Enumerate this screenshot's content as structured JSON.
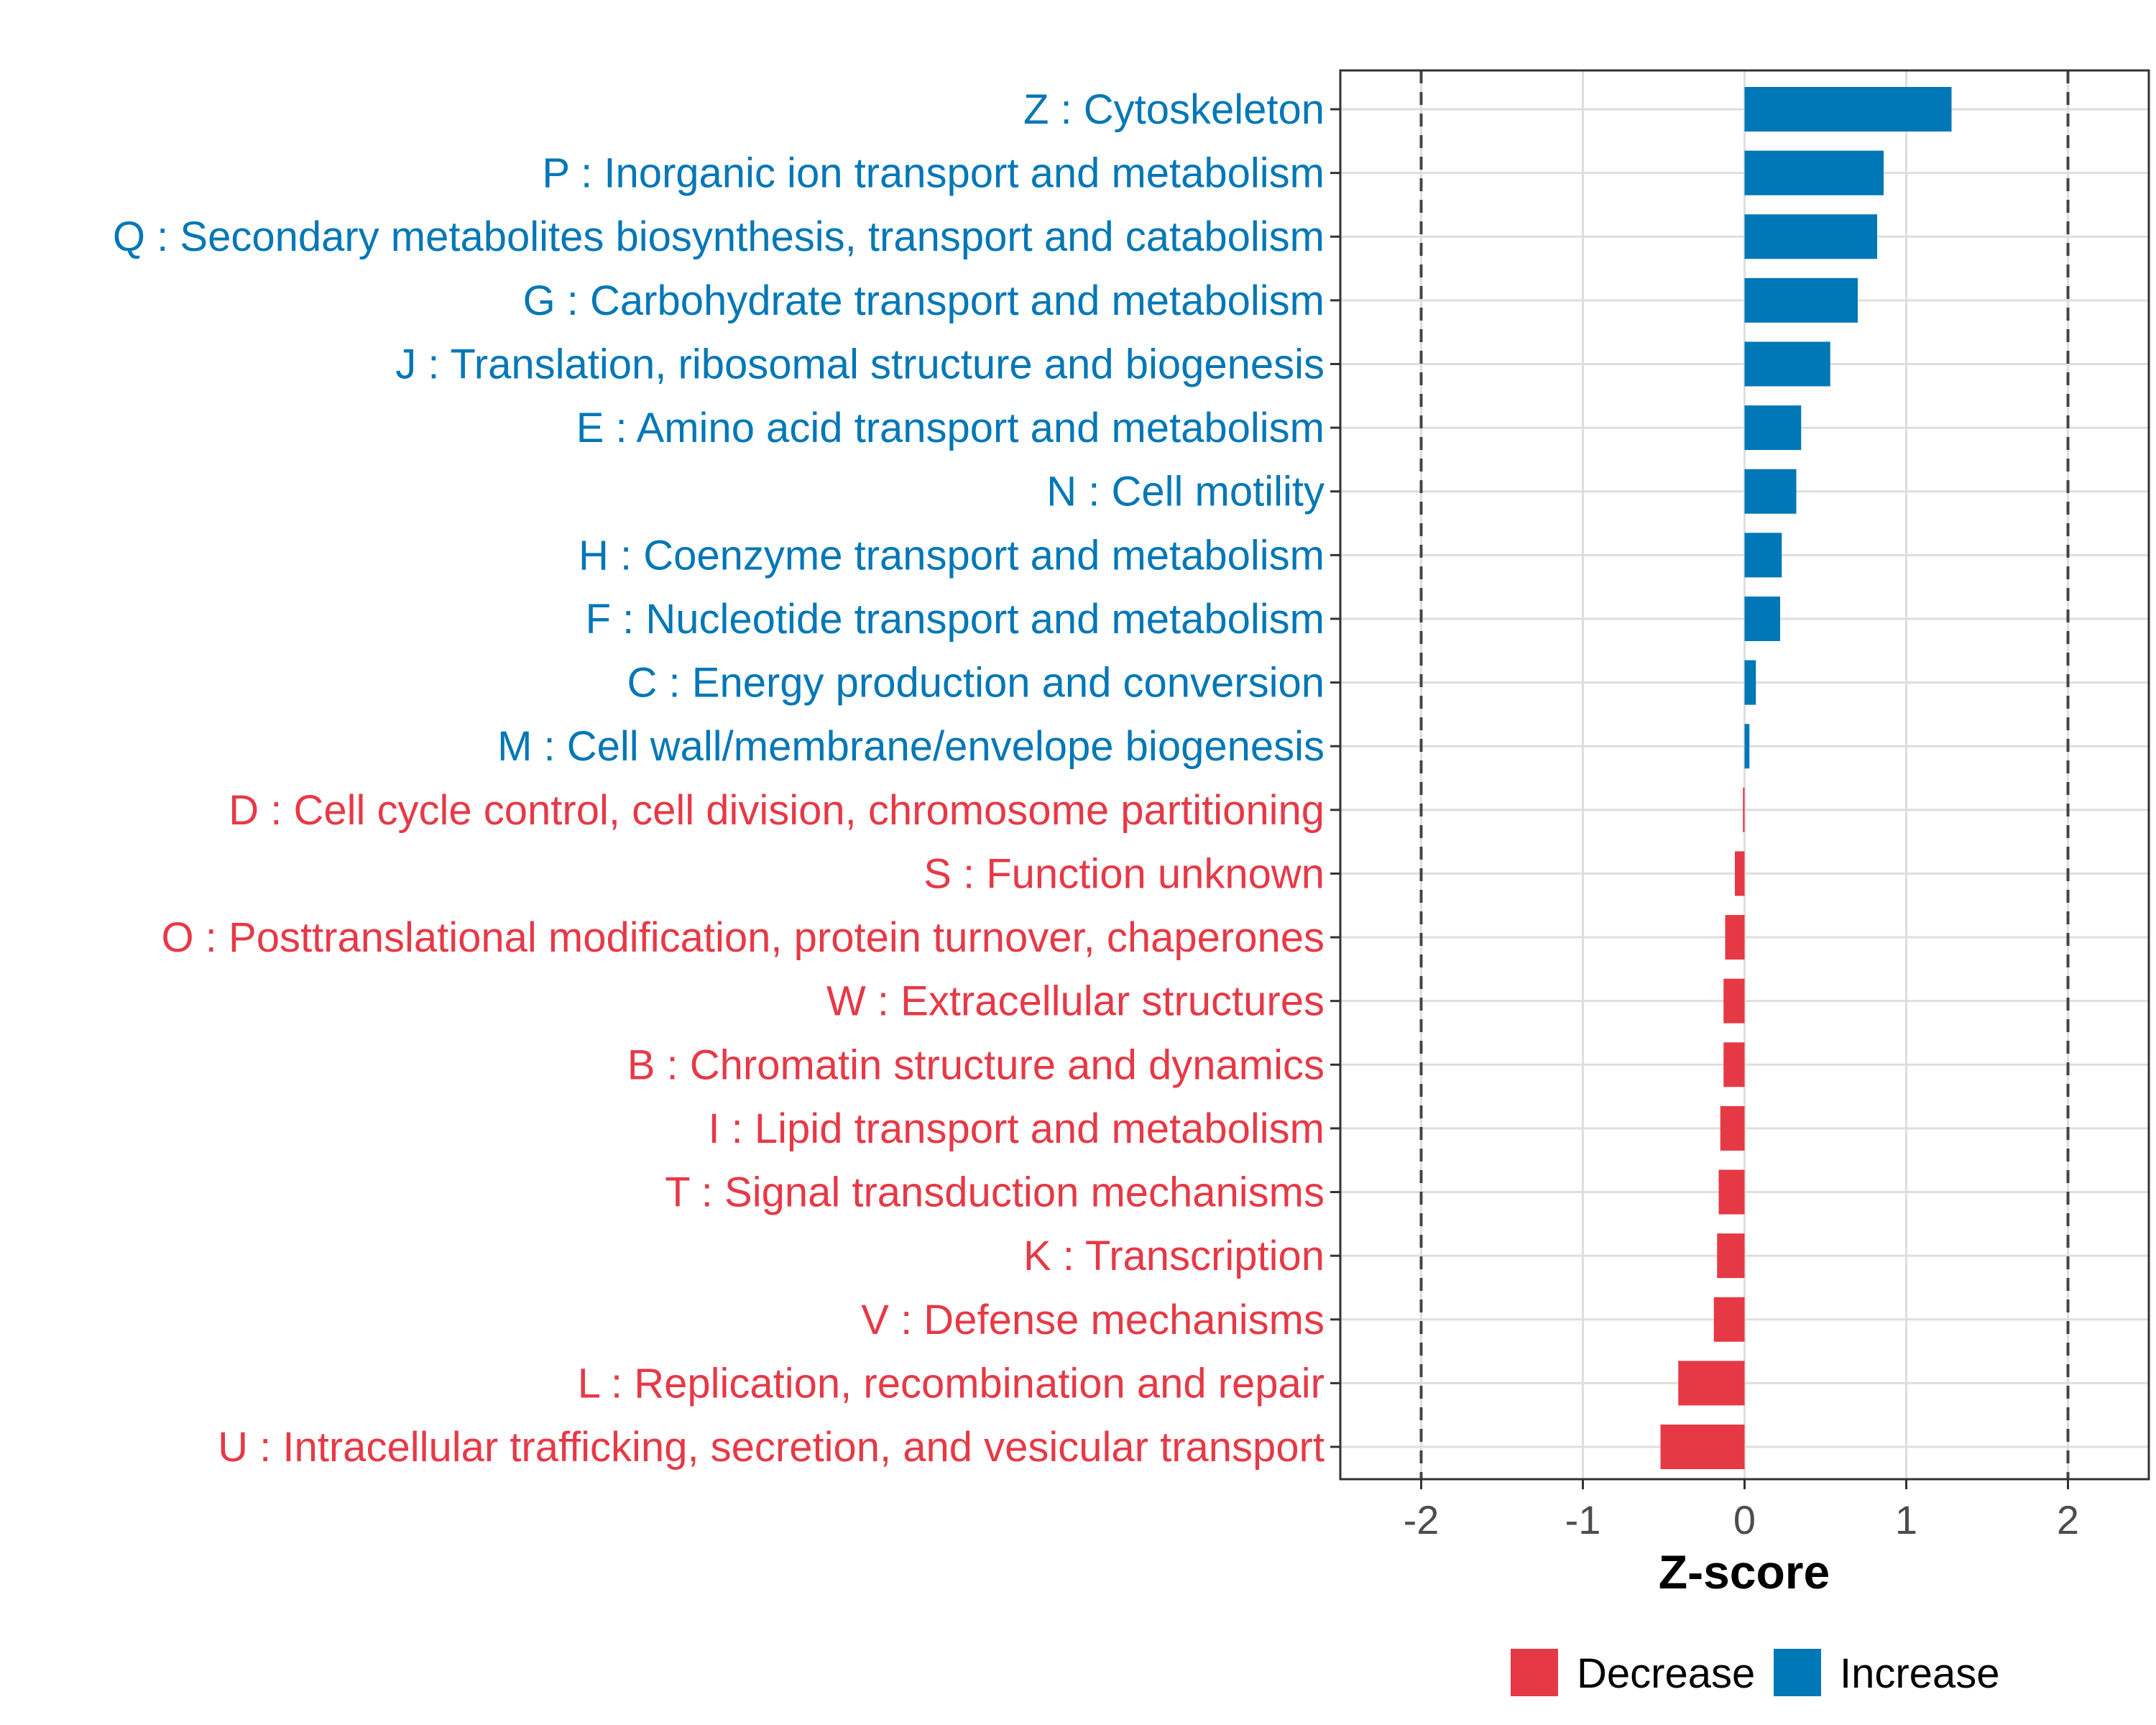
{
  "chart_data": {
    "type": "bar",
    "orientation": "horizontal",
    "xlabel": "Z-score",
    "xlim": [
      -2.5,
      2.5
    ],
    "xticks": [
      -2,
      -1,
      0,
      1,
      2
    ],
    "xtick_labels": [
      "-2",
      "-1",
      "0",
      "1",
      "2"
    ],
    "reference_lines": [
      -2,
      2
    ],
    "grid": true,
    "legend_position": "bottom",
    "categories": [
      "Z : Cytoskeleton",
      "P : Inorganic ion transport and metabolism",
      "Q : Secondary metabolites biosynthesis, transport and catabolism",
      "G : Carbohydrate transport and metabolism",
      "J : Translation, ribosomal structure and biogenesis",
      "E : Amino acid transport and metabolism",
      "N : Cell motility",
      "H : Coenzyme transport and metabolism",
      "F : Nucleotide transport and metabolism",
      "C : Energy production and conversion",
      "M : Cell wall/membrane/envelope biogenesis",
      "D : Cell cycle control, cell division, chromosome partitioning",
      "S : Function unknown",
      "O : Posttranslational modification, protein turnover, chaperones",
      "W : Extracellular structures",
      "B : Chromatin structure and dynamics",
      "I : Lipid transport and metabolism",
      "T : Signal transduction mechanisms",
      "K : Transcription",
      "V : Defense mechanisms",
      "L : Replication, recombination and repair",
      "U : Intracellular trafficking, secretion, and vesicular transport"
    ],
    "values": [
      1.28,
      0.86,
      0.82,
      0.7,
      0.53,
      0.35,
      0.32,
      0.23,
      0.22,
      0.07,
      0.03,
      -0.01,
      -0.06,
      -0.12,
      -0.13,
      -0.13,
      -0.15,
      -0.16,
      -0.17,
      -0.19,
      -0.41,
      -0.52
    ],
    "groups": [
      "Increase",
      "Increase",
      "Increase",
      "Increase",
      "Increase",
      "Increase",
      "Increase",
      "Increase",
      "Increase",
      "Increase",
      "Increase",
      "Decrease",
      "Decrease",
      "Decrease",
      "Decrease",
      "Decrease",
      "Decrease",
      "Decrease",
      "Decrease",
      "Decrease",
      "Decrease",
      "Decrease"
    ],
    "legend": [
      {
        "name": "Decrease",
        "color": "#E63946"
      },
      {
        "name": "Increase",
        "color": "#0077B6"
      }
    ]
  }
}
